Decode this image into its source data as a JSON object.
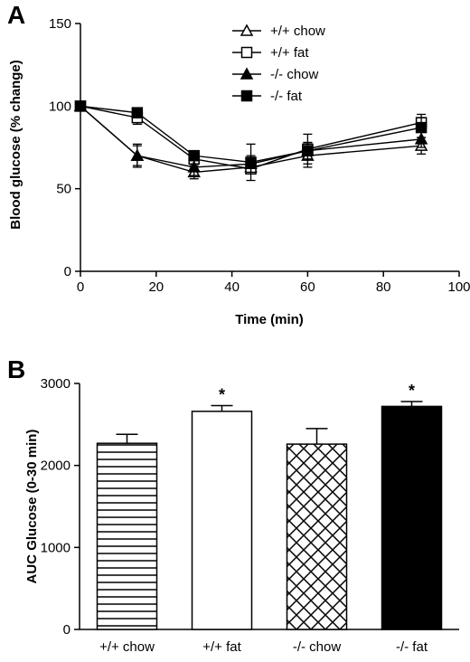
{
  "chart_data": [
    {
      "panel": "A",
      "type": "line",
      "xlabel": "Time (min)",
      "ylabel": "Blood glucose (% change)",
      "xlim": [
        0,
        100
      ],
      "ylim": [
        0,
        150
      ],
      "xticks": [
        0,
        20,
        40,
        60,
        80,
        100
      ],
      "yticks": [
        0,
        50,
        100,
        150
      ],
      "legend_position": "top-center",
      "x": [
        0,
        15,
        30,
        45,
        60,
        90
      ],
      "series": [
        {
          "name": "+/+ chow",
          "marker": "triangle-open",
          "values": [
            100,
            70,
            60,
            63,
            70,
            76
          ],
          "errors": [
            0,
            7,
            4,
            4,
            5,
            5
          ]
        },
        {
          "name": "+/+ fat",
          "marker": "square-open",
          "values": [
            100,
            93,
            68,
            62,
            74,
            90
          ],
          "errors": [
            0,
            4,
            3,
            3,
            4,
            5
          ]
        },
        {
          "name": "-/- chow",
          "marker": "triangle-filled",
          "values": [
            100,
            70,
            63,
            65,
            73,
            80
          ],
          "errors": [
            0,
            6,
            5,
            5,
            5,
            5
          ]
        },
        {
          "name": "-/- fat",
          "marker": "square-filled",
          "values": [
            100,
            96,
            70,
            66,
            73,
            87
          ],
          "errors": [
            0,
            3,
            3,
            11,
            10,
            6
          ]
        }
      ]
    },
    {
      "panel": "B",
      "type": "bar",
      "ylabel": "AUC Glucose (0-30 min)",
      "ylim": [
        0,
        3000
      ],
      "yticks": [
        0,
        1000,
        2000,
        3000
      ],
      "categories": [
        "+/+ chow",
        "+/+ fat",
        "-/- chow",
        "-/- fat"
      ],
      "values": [
        2270,
        2660,
        2260,
        2720
      ],
      "errors": [
        110,
        70,
        190,
        60
      ],
      "fills": [
        "horizontal-stripes",
        "white",
        "crosshatch",
        "black"
      ],
      "significance": [
        "",
        "*",
        "",
        "*"
      ]
    }
  ]
}
